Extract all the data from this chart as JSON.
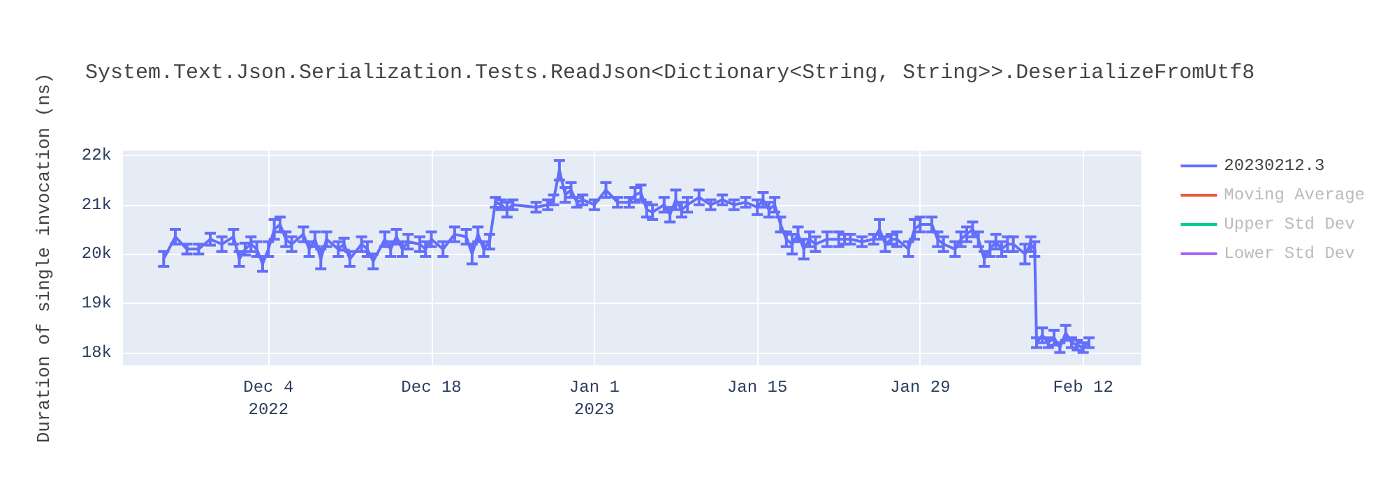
{
  "chart_data": {
    "type": "line",
    "title": "System.Text.Json.Serialization.Tests.ReadJson<Dictionary<String, String>>.DeserializeFromUtf8",
    "ylabel": "Duration of single invocation (ns)",
    "x": [
      "2022-11-25",
      "2022-11-26",
      "2022-11-27",
      "2022-11-28",
      "2022-11-29",
      "2022-11-30",
      "2022-12-01",
      "2022-12-01T12:00",
      "2022-12-02",
      "2022-12-02T12:00",
      "2022-12-03",
      "2022-12-03T12:00",
      "2022-12-04",
      "2022-12-04T12:00",
      "2022-12-05",
      "2022-12-05T12:00",
      "2022-12-06",
      "2022-12-07",
      "2022-12-07T12:00",
      "2022-12-08",
      "2022-12-08T12:00",
      "2022-12-09",
      "2022-12-10",
      "2022-12-10T12:00",
      "2022-12-11",
      "2022-12-12",
      "2022-12-12T12:00",
      "2022-12-13",
      "2022-12-14",
      "2022-12-14T12:00",
      "2022-12-15",
      "2022-12-15T12:00",
      "2022-12-16",
      "2022-12-17",
      "2022-12-17T12:00",
      "2022-12-18",
      "2022-12-19",
      "2022-12-20",
      "2022-12-21",
      "2022-12-21T12:00",
      "2022-12-22",
      "2022-12-22T12:00",
      "2022-12-23",
      "2022-12-23T12:00",
      "2022-12-24",
      "2022-12-24T12:00",
      "2022-12-25",
      "2022-12-27",
      "2022-12-28",
      "2022-12-28T12:00",
      "2022-12-29",
      "2022-12-29T12:00",
      "2022-12-30",
      "2022-12-30T12:00",
      "2022-12-31",
      "2023-01-01",
      "2023-01-02",
      "2023-01-03",
      "2023-01-04",
      "2023-01-04T12:00",
      "2023-01-05",
      "2023-01-05T12:00",
      "2023-01-06",
      "2023-01-07",
      "2023-01-07T12:00",
      "2023-01-08",
      "2023-01-08T12:00",
      "2023-01-09",
      "2023-01-10",
      "2023-01-11",
      "2023-01-12",
      "2023-01-13",
      "2023-01-14",
      "2023-01-15",
      "2023-01-15T12:00",
      "2023-01-16",
      "2023-01-16T12:00",
      "2023-01-17",
      "2023-01-17T12:00",
      "2023-01-18",
      "2023-01-18T12:00",
      "2023-01-19",
      "2023-01-19T12:00",
      "2023-01-20",
      "2023-01-21",
      "2023-01-22",
      "2023-01-22T12:00",
      "2023-01-23",
      "2023-01-24",
      "2023-01-25",
      "2023-01-25T12:00",
      "2023-01-26",
      "2023-01-26T12:00",
      "2023-01-27",
      "2023-01-28",
      "2023-01-28T12:00",
      "2023-01-29",
      "2023-01-30",
      "2023-01-30T12:00",
      "2023-01-31",
      "2023-02-01",
      "2023-02-01T12:00",
      "2023-02-02",
      "2023-02-02T12:00",
      "2023-02-03",
      "2023-02-03T12:00",
      "2023-02-04",
      "2023-02-04T12:00",
      "2023-02-05",
      "2023-02-05T12:00",
      "2023-02-06",
      "2023-02-07",
      "2023-02-07T12:00",
      "2023-02-07T20:00",
      "2023-02-08",
      "2023-02-08T12:00",
      "2023-02-09",
      "2023-02-09T12:00",
      "2023-02-10",
      "2023-02-10T12:00",
      "2023-02-11",
      "2023-02-11T12:00",
      "2023-02-12",
      "2023-02-12T12:00"
    ],
    "series": [
      {
        "name": "20230212.3",
        "color": "#636efa",
        "values": [
          19900,
          20350,
          20100,
          20100,
          20300,
          20200,
          20350,
          19900,
          20100,
          20200,
          20100,
          19800,
          20100,
          20500,
          20600,
          20300,
          20200,
          20400,
          20100,
          20300,
          19900,
          20300,
          20100,
          20200,
          19900,
          20200,
          20100,
          19850,
          20300,
          20100,
          20350,
          20100,
          20250,
          20200,
          20100,
          20300,
          20100,
          20400,
          20350,
          20000,
          20400,
          20100,
          20250,
          21050,
          21000,
          20900,
          21000,
          20950,
          21000,
          21100,
          21700,
          21200,
          21300,
          21050,
          21100,
          21000,
          21300,
          21050,
          21050,
          21200,
          21250,
          20900,
          20850,
          21000,
          20800,
          21100,
          20900,
          21000,
          21150,
          21000,
          21100,
          21000,
          21050,
          20950,
          21100,
          20900,
          21000,
          20600,
          20300,
          20200,
          20400,
          20100,
          20300,
          20200,
          20300,
          20300,
          20300,
          20300,
          20250,
          20300,
          20500,
          20200,
          20300,
          20300,
          20100,
          20500,
          20600,
          20600,
          20300,
          20200,
          20100,
          20300,
          20400,
          20500,
          20300,
          19900,
          20100,
          20250,
          20100,
          20200,
          20200,
          20000,
          20200,
          20100,
          18200,
          18350,
          18200,
          18300,
          18100,
          18400,
          18200,
          18150,
          18100,
          18200
        ],
        "errors": [
          150,
          150,
          100,
          100,
          120,
          150,
          150,
          150,
          120,
          150,
          150,
          150,
          150,
          200,
          150,
          150,
          150,
          150,
          150,
          150,
          200,
          150,
          150,
          120,
          150,
          150,
          150,
          150,
          150,
          150,
          150,
          150,
          150,
          150,
          150,
          150,
          150,
          150,
          150,
          200,
          150,
          150,
          150,
          100,
          100,
          150,
          100,
          100,
          100,
          100,
          200,
          150,
          150,
          100,
          100,
          100,
          150,
          100,
          100,
          150,
          150,
          150,
          150,
          150,
          150,
          200,
          150,
          150,
          150,
          100,
          100,
          100,
          100,
          150,
          150,
          150,
          150,
          150,
          150,
          200,
          150,
          200,
          150,
          150,
          150,
          150,
          100,
          100,
          100,
          100,
          200,
          150,
          100,
          150,
          150,
          200,
          150,
          150,
          150,
          150,
          150,
          150,
          150,
          150,
          150,
          150,
          150,
          150,
          150,
          150,
          150,
          200,
          150,
          150,
          100,
          150,
          100,
          150,
          100,
          150,
          100,
          100,
          100,
          100
        ]
      },
      {
        "name": "Moving Average",
        "color": "#ef553b",
        "values": [
          null,
          null,
          null,
          null,
          null,
          null,
          null,
          null,
          null,
          null,
          null,
          null,
          null,
          null,
          null,
          null,
          null,
          null,
          null,
          null,
          null,
          null,
          null,
          null,
          null,
          null,
          null,
          null,
          null,
          null,
          null,
          null,
          null,
          null,
          null,
          null,
          null,
          null,
          null,
          null,
          null,
          null,
          null,
          null,
          null,
          null,
          null,
          null,
          null,
          null,
          null,
          null,
          null,
          null,
          null,
          null,
          null,
          null,
          null,
          null,
          null,
          null,
          null,
          null,
          null,
          null,
          null,
          null,
          null,
          null,
          null,
          null,
          null,
          null,
          null,
          null,
          null,
          null,
          null,
          null,
          null,
          null,
          null,
          null,
          null,
          null,
          null,
          null,
          null,
          null,
          null,
          null,
          null,
          null,
          null,
          null,
          null,
          null,
          null,
          null,
          null,
          null,
          null,
          null,
          null,
          null,
          null,
          null,
          null,
          null,
          null,
          null,
          null,
          null,
          null,
          null,
          null,
          null,
          null,
          null,
          null,
          null,
          null,
          null
        ]
      },
      {
        "name": "Upper Std Dev",
        "color": "#00cc96",
        "values": [
          null,
          null,
          null,
          null,
          null,
          null,
          null,
          null,
          null,
          null,
          null,
          null,
          null,
          null,
          null,
          null,
          null,
          null,
          null,
          null,
          null,
          null,
          null,
          null,
          null,
          null,
          null,
          null,
          null,
          null,
          null,
          null,
          null,
          null,
          null,
          null,
          null,
          null,
          null,
          null,
          null,
          null,
          null,
          null,
          null,
          null,
          null,
          null,
          null,
          null,
          null,
          null,
          null,
          null,
          null,
          null,
          null,
          null,
          null,
          null,
          null,
          null,
          null,
          null,
          null,
          null,
          null,
          null,
          null,
          null,
          null,
          null,
          null,
          null,
          null,
          null,
          null,
          null,
          null,
          null,
          null,
          null,
          null,
          null,
          null,
          null,
          null,
          null,
          null,
          null,
          null,
          null,
          null,
          null,
          null,
          null,
          null,
          null,
          null,
          null,
          null,
          null,
          null,
          null,
          null,
          null,
          null,
          null,
          null,
          null,
          null,
          null,
          null,
          null,
          null,
          null,
          null,
          null,
          null,
          null,
          null,
          null,
          null,
          null
        ]
      },
      {
        "name": "Lower Std Dev",
        "color": "#ab63fa",
        "values": [
          null,
          null,
          null,
          null,
          null,
          null,
          null,
          null,
          null,
          null,
          null,
          null,
          null,
          null,
          null,
          null,
          null,
          null,
          null,
          null,
          null,
          null,
          null,
          null,
          null,
          null,
          null,
          null,
          null,
          null,
          null,
          null,
          null,
          null,
          null,
          null,
          null,
          null,
          null,
          null,
          null,
          null,
          null,
          null,
          null,
          null,
          null,
          null,
          null,
          null,
          null,
          null,
          null,
          null,
          null,
          null,
          null,
          null,
          null,
          null,
          null,
          null,
          null,
          null,
          null,
          null,
          null,
          null,
          null,
          null,
          null,
          null,
          null,
          null,
          null,
          null,
          null,
          null,
          null,
          null,
          null,
          null,
          null,
          null,
          null,
          null,
          null,
          null,
          null,
          null,
          null,
          null,
          null,
          null,
          null,
          null,
          null,
          null,
          null,
          null,
          null,
          null,
          null,
          null,
          null,
          null,
          null,
          null,
          null,
          null,
          null,
          null,
          null,
          null,
          null,
          null,
          null,
          null,
          null,
          null,
          null,
          null,
          null,
          null
        ]
      }
    ],
    "xlim": [
      "2022-11-21T12:00",
      "2023-02-17"
    ],
    "xticks": [
      {
        "value": "2022-12-04",
        "label": "Dec 4\n2022"
      },
      {
        "value": "2022-12-18",
        "label": "Dec 18"
      },
      {
        "value": "2023-01-01",
        "label": "Jan 1\n2023"
      },
      {
        "value": "2023-01-15",
        "label": "Jan 15"
      },
      {
        "value": "2023-01-29",
        "label": "Jan 29"
      },
      {
        "value": "2023-02-12",
        "label": "Feb 12"
      }
    ],
    "ylim": [
      17740,
      22100
    ],
    "yticks": [
      {
        "value": 18000,
        "label": "18k"
      },
      {
        "value": 19000,
        "label": "19k"
      },
      {
        "value": 20000,
        "label": "20k"
      },
      {
        "value": 21000,
        "label": "21k"
      },
      {
        "value": 22000,
        "label": "22k"
      }
    ],
    "grid": true,
    "legend": "right",
    "marker": "none",
    "line_style": "solid"
  }
}
